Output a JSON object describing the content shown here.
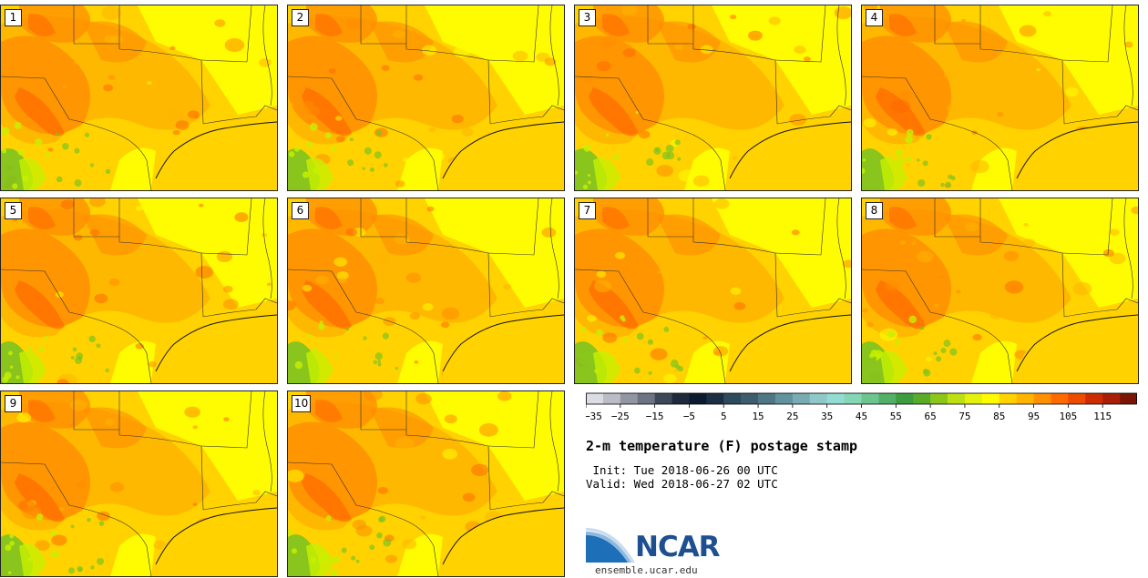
{
  "panels": [
    {
      "label": "1"
    },
    {
      "label": "2"
    },
    {
      "label": "3"
    },
    {
      "label": "4"
    },
    {
      "label": "5"
    },
    {
      "label": "6"
    },
    {
      "label": "7"
    },
    {
      "label": "8"
    },
    {
      "label": "9"
    },
    {
      "label": "10"
    }
  ],
  "colorbar": {
    "tick_labels": [
      "−35",
      "−25",
      "−15",
      "−5",
      "5",
      "15",
      "25",
      "35",
      "45",
      "55",
      "65",
      "75",
      "85",
      "95",
      "105",
      "115"
    ],
    "colors": [
      "#dcdce4",
      "#bcbcc6",
      "#9296a2",
      "#6c7484",
      "#3c4858",
      "#1e2a3c",
      "#0c1a30",
      "#1c2e44",
      "#2e4a5e",
      "#3e5c6c",
      "#4e7684",
      "#62929e",
      "#78acb2",
      "#8ec8c8",
      "#92dcd2",
      "#84d6b4",
      "#6cc48e",
      "#52b068",
      "#3e9c40",
      "#58ac28",
      "#8cc61a",
      "#bee012",
      "#e4f00e",
      "#fffc00",
      "#ffd200",
      "#ffb400",
      "#ff9000",
      "#ff6a00",
      "#ee4a00",
      "#cc2c00",
      "#a81e08",
      "#7c1406"
    ]
  },
  "title": "2-m temperature (F) postage stamp",
  "init": " Init: Tue 2018-06-26 00 UTC",
  "valid": "Valid: Wed 2018-06-27 02 UTC",
  "logo": {
    "text": "NCAR",
    "site": "ensemble.ucar.edu"
  },
  "palette": {
    "yellow": "#ffff00",
    "gold": "#ffd200",
    "amber": "#ffb400",
    "orange": "#ff8c00",
    "deep_orange": "#ff6a00",
    "green": "#7cc31f",
    "lime": "#c8f000"
  }
}
